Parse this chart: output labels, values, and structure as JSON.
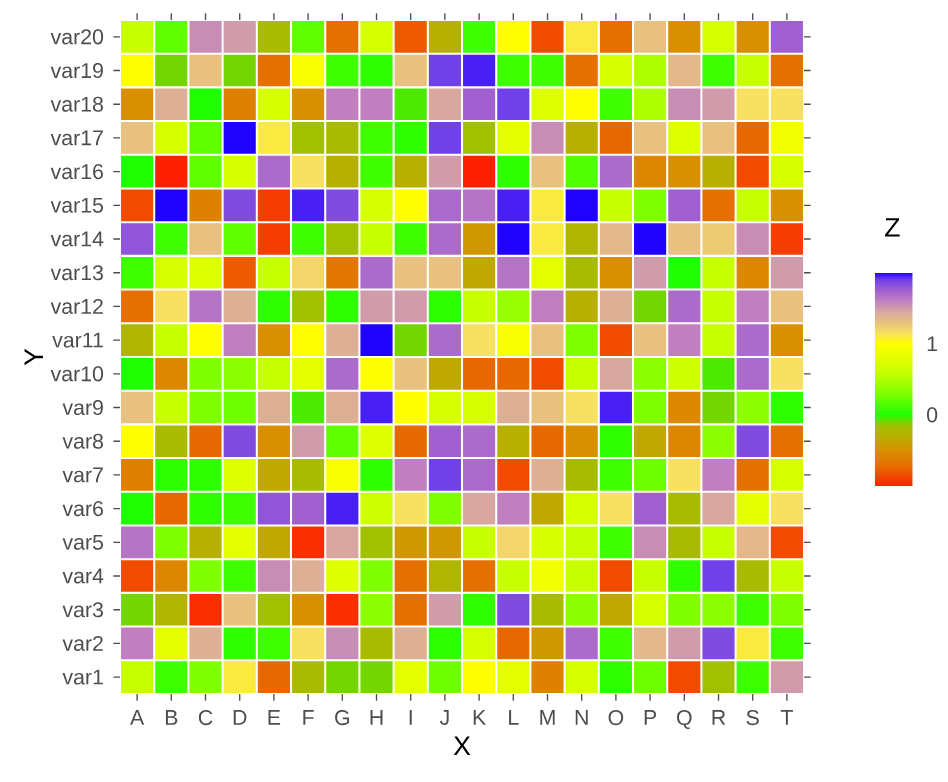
{
  "chart_data": {
    "type": "heatmap",
    "xlabel": "X",
    "ylabel": "Y",
    "clabel": "Z",
    "categories": [
      "A",
      "B",
      "C",
      "D",
      "E",
      "F",
      "G",
      "H",
      "I",
      "J",
      "K",
      "L",
      "M",
      "N",
      "O",
      "P",
      "Q",
      "R",
      "S",
      "T"
    ],
    "y_categories": [
      "var20",
      "var19",
      "var18",
      "var17",
      "var16",
      "var15",
      "var14",
      "var13",
      "var12",
      "var11",
      "var10",
      "var9",
      "var8",
      "var7",
      "var6",
      "var5",
      "var4",
      "var3",
      "var2",
      "var1"
    ],
    "cells": [
      [
        0.6,
        0.2,
        1.55,
        1.5,
        -0.2,
        0.2,
        -0.7,
        0.7,
        -0.8,
        -0.3,
        0.1,
        1.0,
        -0.85,
        1.1,
        -0.7,
        1.3,
        -0.5,
        0.7,
        -0.5,
        1.75
      ],
      [
        1.0,
        -0.1,
        1.3,
        -0.1,
        -0.7,
        0.95,
        0.1,
        0.05,
        1.3,
        1.9,
        1.95,
        0.1,
        0.1,
        -0.7,
        0.7,
        0.5,
        1.35,
        0.1,
        0.6,
        -0.7
      ],
      [
        -0.5,
        1.4,
        0.0,
        -0.6,
        0.7,
        -0.5,
        1.6,
        1.6,
        -0.05,
        1.45,
        1.75,
        1.9,
        0.75,
        1.0,
        0.1,
        0.5,
        1.55,
        1.5,
        1.15,
        1.15
      ],
      [
        1.3,
        0.7,
        0.2,
        2.0,
        1.1,
        -0.15,
        -0.2,
        0.1,
        0.05,
        1.9,
        -0.15,
        0.8,
        1.55,
        -0.3,
        -0.75,
        1.3,
        0.75,
        1.3,
        -0.75,
        0.9
      ],
      [
        0.0,
        -1.0,
        0.2,
        0.7,
        1.7,
        1.15,
        -0.3,
        0.1,
        -0.3,
        1.5,
        -1.0,
        0.05,
        1.3,
        0.15,
        1.7,
        -0.55,
        -0.5,
        -0.3,
        -0.85,
        0.7
      ],
      [
        -0.85,
        2.0,
        -0.6,
        1.85,
        -0.9,
        1.95,
        1.85,
        0.7,
        1.0,
        1.7,
        1.65,
        1.95,
        1.1,
        2.0,
        0.6,
        0.3,
        1.75,
        -0.7,
        0.6,
        -0.5
      ],
      [
        1.8,
        0.1,
        1.3,
        0.2,
        -0.9,
        0.1,
        -0.15,
        0.6,
        0.1,
        1.7,
        -0.45,
        2.0,
        1.1,
        -0.25,
        1.35,
        2.0,
        1.3,
        1.25,
        1.55,
        -0.9
      ],
      [
        0.1,
        0.7,
        0.75,
        -0.8,
        0.6,
        1.2,
        -0.65,
        1.7,
        1.3,
        1.3,
        -0.35,
        1.65,
        0.8,
        -0.2,
        -0.5,
        1.5,
        0.0,
        0.6,
        -0.55,
        1.5
      ],
      [
        -0.7,
        1.15,
        1.65,
        1.4,
        0.05,
        -0.15,
        0.05,
        1.5,
        1.5,
        0.05,
        0.6,
        0.4,
        1.6,
        -0.3,
        1.4,
        -0.1,
        1.7,
        0.6,
        1.6,
        1.3
      ],
      [
        -0.25,
        0.6,
        1.0,
        1.6,
        -0.5,
        1.0,
        1.4,
        2.0,
        -0.1,
        1.7,
        1.15,
        0.95,
        1.3,
        0.3,
        -0.85,
        1.3,
        1.6,
        0.6,
        1.7,
        -0.5
      ],
      [
        0.0,
        -0.55,
        0.3,
        0.35,
        0.6,
        0.8,
        1.7,
        1.0,
        1.3,
        -0.35,
        -0.75,
        -0.75,
        -0.85,
        0.6,
        1.45,
        0.35,
        0.65,
        -0.05,
        1.7,
        1.15
      ],
      [
        1.3,
        0.6,
        0.3,
        0.25,
        1.4,
        -0.05,
        1.4,
        1.95,
        1.0,
        0.7,
        0.7,
        1.4,
        1.3,
        1.15,
        1.95,
        0.3,
        -0.55,
        -0.1,
        0.35,
        0.05
      ],
      [
        1.0,
        -0.2,
        -0.75,
        1.85,
        -0.5,
        1.5,
        0.2,
        0.75,
        -0.75,
        1.75,
        1.7,
        -0.3,
        -0.75,
        -0.5,
        0.05,
        -0.35,
        -0.55,
        0.35,
        1.85,
        -0.7
      ],
      [
        -0.6,
        0.05,
        0.05,
        0.75,
        -0.35,
        -0.2,
        0.95,
        0.05,
        1.6,
        1.9,
        1.7,
        -0.85,
        1.4,
        -0.2,
        0.1,
        0.25,
        1.15,
        1.6,
        -0.7,
        0.7
      ],
      [
        0.0,
        -0.75,
        0.05,
        0.1,
        1.8,
        1.75,
        1.95,
        0.65,
        1.15,
        0.3,
        1.45,
        1.6,
        -0.35,
        0.7,
        1.15,
        1.75,
        -0.2,
        1.45,
        0.8,
        1.15
      ],
      [
        1.65,
        0.3,
        -0.3,
        0.8,
        -0.35,
        -0.95,
        1.45,
        -0.15,
        -0.45,
        -0.45,
        0.6,
        1.2,
        0.7,
        0.6,
        0.1,
        1.55,
        -0.2,
        0.6,
        1.35,
        -0.85
      ],
      [
        -0.85,
        -0.55,
        0.3,
        0.1,
        1.55,
        1.4,
        0.75,
        0.3,
        -0.7,
        -0.25,
        -0.7,
        0.6,
        0.9,
        0.6,
        -0.85,
        0.6,
        0.05,
        1.9,
        -0.2,
        0.6
      ],
      [
        -0.1,
        -0.25,
        -0.95,
        1.3,
        -0.15,
        -0.5,
        -0.95,
        0.35,
        -0.7,
        1.5,
        0.05,
        1.85,
        -0.2,
        0.35,
        -0.35,
        0.7,
        0.3,
        0.35,
        0.1,
        0.3
      ],
      [
        1.6,
        0.8,
        1.4,
        0.05,
        0.1,
        1.15,
        1.55,
        -0.2,
        1.4,
        0.05,
        0.7,
        -0.75,
        -0.45,
        1.7,
        0.1,
        1.35,
        1.5,
        1.85,
        1.1,
        0.1
      ],
      [
        0.6,
        0.1,
        0.3,
        1.1,
        -0.75,
        -0.2,
        -0.1,
        -0.1,
        0.8,
        0.25,
        1.0,
        0.8,
        -0.6,
        0.7,
        0.05,
        0.25,
        -0.85,
        -0.15,
        0.1,
        1.5
      ]
    ],
    "clim": [
      -1,
      2
    ],
    "cticks": [
      0,
      1
    ]
  }
}
